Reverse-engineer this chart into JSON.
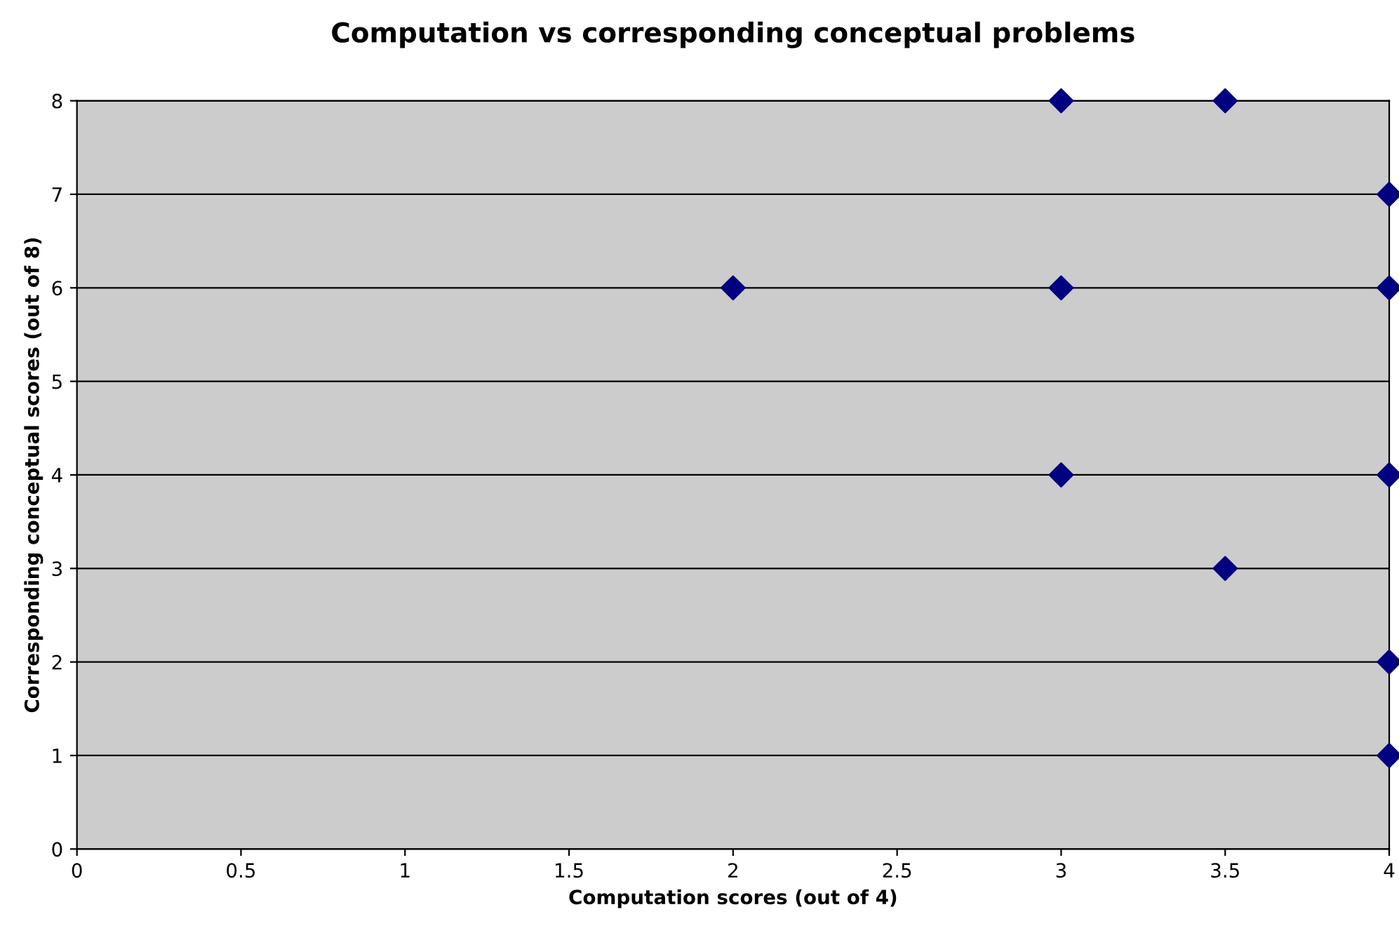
{
  "chart_data": {
    "type": "scatter",
    "title": "Computation vs corresponding conceptual problems",
    "xlabel": "Computation scores (out of 4)",
    "ylabel": "Corresponding conceptual scores (out of 8)",
    "series": [
      {
        "color": "#000080",
        "x": [
          3,
          3.5,
          4,
          2,
          3,
          4,
          3,
          4,
          3.5,
          4,
          4
        ],
        "values": [
          8,
          8,
          7,
          6,
          6,
          6,
          4,
          4,
          3,
          2,
          1
        ]
      }
    ],
    "xlim": [
      0,
      4
    ],
    "xticks": [
      0,
      0.5,
      1,
      1.5,
      2,
      2.5,
      3,
      3.5,
      4
    ],
    "ylim": [
      0,
      8
    ],
    "yticks": [
      0,
      1,
      2,
      3,
      4,
      5,
      6,
      7,
      8
    ],
    "grid": "y",
    "marker": "diamond"
  }
}
